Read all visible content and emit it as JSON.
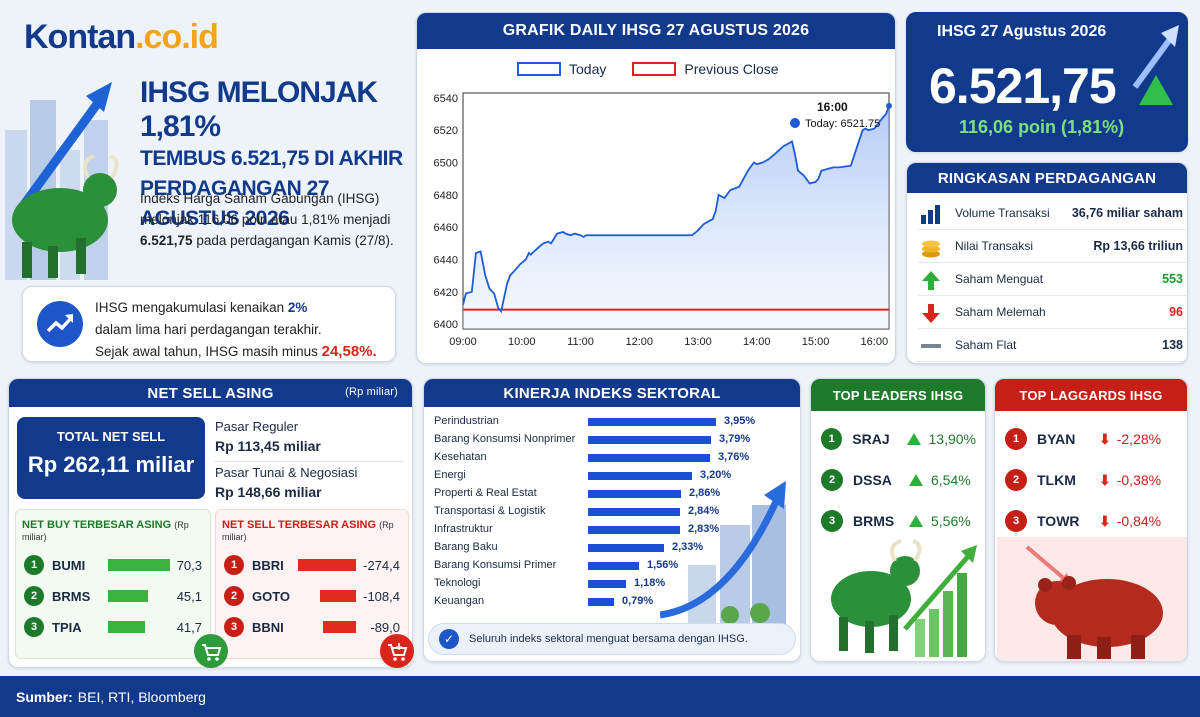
{
  "brand": {
    "name": "Kontan",
    "suffix": ".co.id"
  },
  "headline": {
    "line1": "IHSG MELONJAK 1,81%",
    "line2": "TEMBUS 6.521,75 DI AKHIR",
    "line3": "PERDAGANGAN 27 AGUSTUS 2026"
  },
  "intro": {
    "p1": "Indeks Harga Saham Gabungan (IHSG) melonjak 116,06 poin atau 1,81% menjadi",
    "strong": "6.521,75",
    "p2": "pada perdagangan Kamis (27/8)."
  },
  "note": {
    "t1": "IHSG mengakumulasi kenaikan",
    "v1": "2%",
    "t2": "dalam lima hari perdagangan terakhir.",
    "t3": "Sejak awal tahun, IHSG masih minus",
    "v2": "24,58%."
  },
  "chart_panel": {
    "title": "GRAFIK DAILY IHSG 27 AGUSTUS 2026",
    "legend_today": "Today",
    "legend_prev": "Previous Close",
    "annotation_time": "16:00",
    "annotation_label": "Today: 6521.75"
  },
  "chart_data": {
    "type": "line",
    "title": "GRAFIK DAILY IHSG 27 AGUSTUS 2026",
    "xlabel": "",
    "ylabel": "",
    "x_ticks": [
      "09:00",
      "10:00",
      "11:00",
      "12:00",
      "13:00",
      "14:00",
      "15:00",
      "16:00"
    ],
    "y_ticks": [
      6400,
      6420,
      6440,
      6460,
      6480,
      6500,
      6520,
      6540
    ],
    "ylim": [
      6397,
      6543
    ],
    "series": [
      {
        "name": "Today",
        "x": [
          0,
          0.05,
          0.15,
          0.22,
          0.3,
          0.38,
          0.45,
          0.53,
          0.6,
          0.65,
          0.75,
          0.8,
          0.9,
          0.97,
          1.07,
          1.12,
          1.15,
          1.3,
          1.37,
          1.45,
          1.5,
          1.6,
          1.7,
          1.75,
          1.83,
          1.9,
          2.0,
          2.05,
          2.1,
          2.4,
          2.6,
          2.8,
          3.0,
          3.3,
          3.6,
          3.9,
          4.0,
          4.1,
          4.25,
          4.3,
          4.35,
          4.45,
          4.55,
          4.7,
          4.85,
          4.95,
          5.0,
          5.1,
          5.2,
          5.3,
          5.45,
          5.6,
          5.65,
          5.7,
          5.8,
          5.9,
          6.0,
          6.05,
          6.1,
          6.3,
          6.4,
          6.6,
          6.8,
          6.85,
          6.9,
          7.0,
          7.15,
          7.2,
          7.25
        ],
        "y": [
          6412,
          6419,
          6420,
          6444,
          6445,
          6430,
          6422,
          6419,
          6410,
          6408,
          6425,
          6430,
          6434,
          6437,
          6440,
          6444,
          6443,
          6448,
          6450,
          6451,
          6450,
          6456,
          6457,
          6456,
          6455,
          6456,
          6455,
          6454,
          6455,
          6455,
          6455,
          6455,
          6455,
          6455,
          6455,
          6455,
          6458,
          6462,
          6465,
          6470,
          6480,
          6478,
          6483,
          6485,
          6495,
          6500,
          6499,
          6500,
          6502,
          6505,
          6510,
          6513,
          6505,
          6495,
          6492,
          6487,
          6488,
          6490,
          6495,
          6497,
          6497,
          6498,
          6520,
          6521,
          6520,
          6521,
          6528,
          6530,
          6535
        ]
      },
      {
        "name": "Previous Close",
        "x": [
          0,
          7.25
        ],
        "y": [
          6409,
          6409
        ]
      }
    ]
  },
  "price_panel": {
    "title": "IHSG 27 Agustus 2026",
    "value": "6.521,75",
    "change": "116,06 poin (1,81%)",
    "accent": "#2fbf4a"
  },
  "summary": {
    "title": "RINGKASAN PERDAGANGAN",
    "rows": [
      {
        "label": "Volume Transaksi",
        "value": "36,76 miliar saham",
        "icon": "bar-chart-icon"
      },
      {
        "label": "Nilai Transaksi",
        "value": "Rp 13,66 triliun",
        "icon": "coins-icon"
      },
      {
        "label": "Saham Menguat",
        "value": "553",
        "icon": "arrow-up-icon"
      },
      {
        "label": "Saham Melemah",
        "value": "96",
        "icon": "arrow-down-icon"
      },
      {
        "label": "Saham Flat",
        "value": "138",
        "icon": "flat-line-icon"
      }
    ]
  },
  "net_sell": {
    "title": "NET SELL ASING",
    "unit": "(Rp miliar)",
    "total_label": "TOTAL NET SELL",
    "total_value": "Rp 262,11 miliar",
    "reguler_label": "Pasar Reguler",
    "reguler_value": "Rp 113,45 miliar",
    "tunai_label": "Pasar Tunai & Negosiasi",
    "tunai_value": "Rp 148,66 miliar",
    "buy_title": "NET BUY TERBESAR ASING",
    "buy_unit": "(Rp miliar)",
    "buy": [
      {
        "rank": "1",
        "code": "BUMI",
        "value": "70,3",
        "num": 70.3
      },
      {
        "rank": "2",
        "code": "BRMS",
        "value": "45,1",
        "num": 45.1
      },
      {
        "rank": "3",
        "code": "TPIA",
        "value": "41,7",
        "num": 41.7
      }
    ],
    "sell_title": "NET SELL TERBESAR ASING",
    "sell_unit": "(Rp miliar)",
    "sell": [
      {
        "rank": "1",
        "code": "BBRI",
        "value": "-274,4",
        "num": 274.4
      },
      {
        "rank": "2",
        "code": "GOTO",
        "value": "-108,4",
        "num": 108.4
      },
      {
        "rank": "3",
        "code": "BBNI",
        "value": "-89,0",
        "num": 89.0
      }
    ]
  },
  "sectors": {
    "title": "KINERJA INDEKS SEKTORAL",
    "footer": "Seluruh indeks sektoral menguat bersama dengan IHSG.",
    "items": [
      {
        "label": "Perindustrian",
        "value": "3,95%",
        "num": 3.95
      },
      {
        "label": "Barang Konsumsi Nonprimer",
        "value": "3,79%",
        "num": 3.79
      },
      {
        "label": "Kesehatan",
        "value": "3,76%",
        "num": 3.76
      },
      {
        "label": "Energi",
        "value": "3,20%",
        "num": 3.2
      },
      {
        "label": "Properti & Real Estat",
        "value": "2,86%",
        "num": 2.86
      },
      {
        "label": "Transportasi & Logistik",
        "value": "2,84%",
        "num": 2.84
      },
      {
        "label": "Infrastruktur",
        "value": "2,83%",
        "num": 2.83
      },
      {
        "label": "Barang Baku",
        "value": "2,33%",
        "num": 2.33
      },
      {
        "label": "Barang Konsumsi Primer",
        "value": "1,56%",
        "num": 1.56
      },
      {
        "label": "Teknologi",
        "value": "1,18%",
        "num": 1.18
      },
      {
        "label": "Keuangan",
        "value": "0,79%",
        "num": 0.79
      }
    ]
  },
  "leaders": {
    "title": "TOP LEADERS IHSG",
    "items": [
      {
        "rank": "1",
        "code": "SRAJ",
        "value": "13,90%"
      },
      {
        "rank": "2",
        "code": "DSSA",
        "value": "6,54%"
      },
      {
        "rank": "3",
        "code": "BRMS",
        "value": "5,56%"
      }
    ]
  },
  "laggards": {
    "title": "TOP LAGGARDS IHSG",
    "items": [
      {
        "rank": "1",
        "code": "BYAN",
        "value": "-2,28%"
      },
      {
        "rank": "2",
        "code": "TLKM",
        "value": "-0,38%"
      },
      {
        "rank": "3",
        "code": "TOWR",
        "value": "-0,84%"
      }
    ]
  },
  "footer": {
    "label": "Sumber:",
    "text": "BEI, RTI, Bloomberg"
  }
}
